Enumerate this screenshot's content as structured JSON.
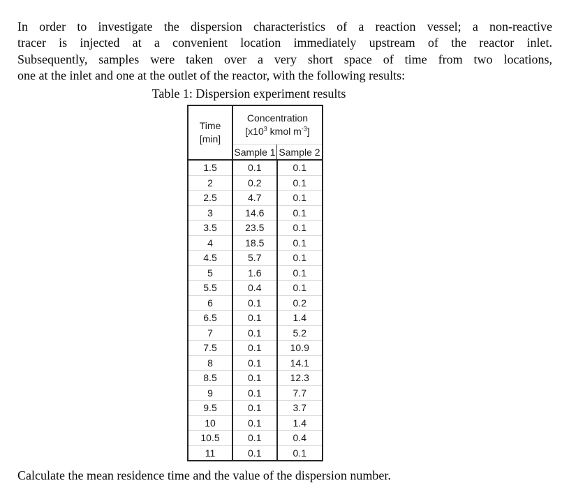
{
  "intro": {
    "lines": [
      "In order to investigate the dispersion characteristics of a reaction vessel; a non-reactive",
      "tracer is injected at a convenient location immediately upstream of the reactor inlet.",
      "Subsequently, samples were taken over a very short space of time from two locations,",
      "one at the inlet and one at the outlet of the reactor, with the following results:"
    ]
  },
  "table": {
    "caption": "Table 1: Dispersion experiment results",
    "time_header": {
      "line1": "Time",
      "line2": "[min]"
    },
    "concentration_header": {
      "title": "Concentration",
      "unit_prefix": "[x10",
      "unit_sup1": "3",
      "unit_mid": " kmol m",
      "unit_sup2": "-3",
      "unit_suffix": "]"
    },
    "subheaders": [
      "Sample 1",
      "Sample 2"
    ],
    "rows": [
      {
        "time": "1.5",
        "sample1": "0.1",
        "sample2": "0.1"
      },
      {
        "time": "2",
        "sample1": "0.2",
        "sample2": "0.1"
      },
      {
        "time": "2.5",
        "sample1": "4.7",
        "sample2": "0.1"
      },
      {
        "time": "3",
        "sample1": "14.6",
        "sample2": "0.1"
      },
      {
        "time": "3.5",
        "sample1": "23.5",
        "sample2": "0.1"
      },
      {
        "time": "4",
        "sample1": "18.5",
        "sample2": "0.1"
      },
      {
        "time": "4.5",
        "sample1": "5.7",
        "sample2": "0.1"
      },
      {
        "time": "5",
        "sample1": "1.6",
        "sample2": "0.1"
      },
      {
        "time": "5.5",
        "sample1": "0.4",
        "sample2": "0.1"
      },
      {
        "time": "6",
        "sample1": "0.1",
        "sample2": "0.2"
      },
      {
        "time": "6.5",
        "sample1": "0.1",
        "sample2": "1.4"
      },
      {
        "time": "7",
        "sample1": "0.1",
        "sample2": "5.2"
      },
      {
        "time": "7.5",
        "sample1": "0.1",
        "sample2": "10.9"
      },
      {
        "time": "8",
        "sample1": "0.1",
        "sample2": "14.1"
      },
      {
        "time": "8.5",
        "sample1": "0.1",
        "sample2": "12.3"
      },
      {
        "time": "9",
        "sample1": "0.1",
        "sample2": "7.7"
      },
      {
        "time": "9.5",
        "sample1": "0.1",
        "sample2": "3.7"
      },
      {
        "time": "10",
        "sample1": "0.1",
        "sample2": "1.4"
      },
      {
        "time": "10.5",
        "sample1": "0.1",
        "sample2": "0.4"
      },
      {
        "time": "11",
        "sample1": "0.1",
        "sample2": "0.1"
      }
    ]
  },
  "question": "Calculate the mean residence time and the value of the dispersion number.",
  "colors": {
    "border_dark": "#262626",
    "row_line": "#d9d9d9",
    "text": "#0a0a0a",
    "background": "#ffffff"
  }
}
